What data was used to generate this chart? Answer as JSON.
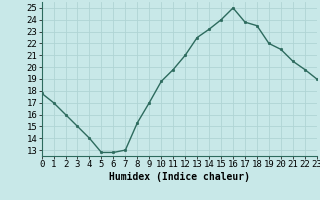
{
  "x": [
    0,
    1,
    2,
    3,
    4,
    5,
    6,
    7,
    8,
    9,
    10,
    11,
    12,
    13,
    14,
    15,
    16,
    17,
    18,
    19,
    20,
    21,
    22,
    23
  ],
  "y": [
    17.8,
    17.0,
    16.0,
    15.0,
    14.0,
    12.8,
    12.8,
    13.0,
    15.3,
    17.0,
    18.8,
    19.8,
    21.0,
    22.5,
    23.2,
    24.0,
    25.0,
    23.8,
    23.5,
    22.0,
    21.5,
    20.5,
    19.8,
    19.0
  ],
  "xlabel": "Humidex (Indice chaleur)",
  "xlim": [
    0,
    23
  ],
  "ylim": [
    12.5,
    25.5
  ],
  "yticks": [
    13,
    14,
    15,
    16,
    17,
    18,
    19,
    20,
    21,
    22,
    23,
    24,
    25
  ],
  "xtick_labels": [
    "0",
    "1",
    "2",
    "3",
    "4",
    "5",
    "6",
    "7",
    "8",
    "9",
    "10",
    "11",
    "12",
    "13",
    "14",
    "15",
    "16",
    "17",
    "18",
    "19",
    "20",
    "21",
    "22",
    "23"
  ],
  "line_color": "#2d6b5e",
  "marker_color": "#2d6b5e",
  "bg_color": "#c8e8e8",
  "grid_color": "#b0d4d4",
  "label_fontsize": 7,
  "tick_fontsize": 6.5
}
